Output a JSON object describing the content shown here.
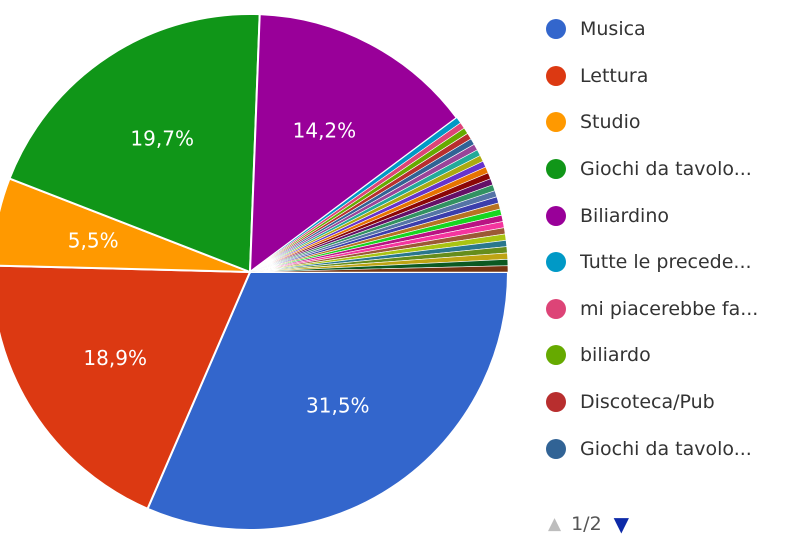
{
  "chart_data": {
    "type": "pie",
    "slices": [
      {
        "label": "Musica",
        "value": 31.5,
        "display": "31,5%",
        "color": "#3366cc"
      },
      {
        "label": "Lettura",
        "value": 18.9,
        "display": "18,9%",
        "color": "#dc3912"
      },
      {
        "label": "Studio",
        "value": 5.5,
        "display": "5,5%",
        "color": "#ff9900"
      },
      {
        "label": "Giochi da tavolo...",
        "value": 19.7,
        "display": "19,7%",
        "color": "#109618"
      },
      {
        "label": "Biliardino",
        "value": 14.2,
        "display": "14,2%",
        "color": "#990099"
      }
    ],
    "small_slices_colors": [
      "#0099c6",
      "#dd4477",
      "#66aa00",
      "#b82e2e",
      "#316395",
      "#994499",
      "#22aa99",
      "#aaaa11",
      "#6633cc",
      "#e67300",
      "#8b0707",
      "#651067",
      "#329262",
      "#5574a6",
      "#3b3eac",
      "#b77322",
      "#16d620",
      "#b91383",
      "#f4359e",
      "#9c5935",
      "#a9c413",
      "#2a778d",
      "#668d1c",
      "#bea413",
      "#0c5922",
      "#743411"
    ]
  },
  "legend": {
    "items": [
      {
        "label": "Musica",
        "color": "#3366cc"
      },
      {
        "label": "Lettura",
        "color": "#dc3912"
      },
      {
        "label": "Studio",
        "color": "#ff9900"
      },
      {
        "label": "Giochi da tavolo...",
        "color": "#109618"
      },
      {
        "label": "Biliardino",
        "color": "#990099"
      },
      {
        "label": "Tutte le precede...",
        "color": "#0099c6"
      },
      {
        "label": "mi piacerebbe fa...",
        "color": "#dd4477"
      },
      {
        "label": "biliardo",
        "color": "#66aa00"
      },
      {
        "label": "Discoteca/Pub",
        "color": "#b82e2e"
      },
      {
        "label": "Giochi da tavolo...",
        "color": "#316395"
      }
    ]
  },
  "pager": {
    "page": "1/2",
    "prev_icon": "triangle-up-icon",
    "next_icon": "triangle-down-icon"
  }
}
